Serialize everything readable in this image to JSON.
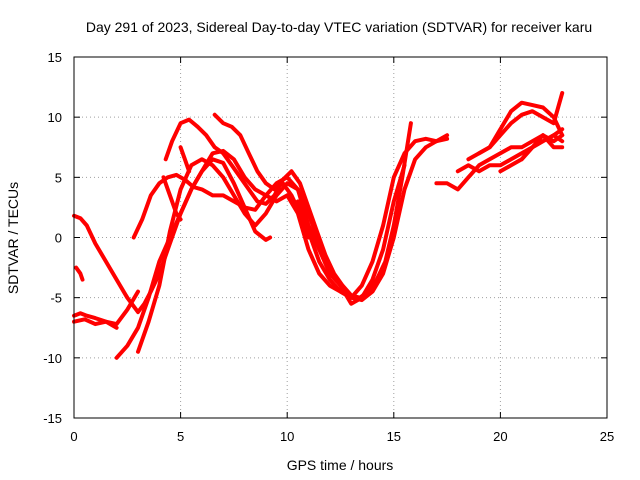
{
  "chart_data": {
    "type": "line",
    "title": "Day 291 of 2023, Sidereal Day-to-day VTEC variation (SDTVAR) for receiver karu",
    "xlabel": "GPS time / hours",
    "ylabel": "SDTVAR / TECUs",
    "xlim": [
      0,
      25
    ],
    "ylim": [
      -15,
      15
    ],
    "xticks": [
      0,
      5,
      10,
      15,
      20,
      25
    ],
    "yticks": [
      -15,
      -10,
      -5,
      0,
      5,
      10,
      15
    ],
    "grid": true,
    "color": "#ff0000",
    "marker": "plus",
    "series": [
      {
        "name": "s1",
        "x": [
          0.0,
          0.3,
          0.6,
          1.0,
          1.5,
          2.0,
          2.5,
          3.0,
          3.3,
          3.6,
          4.0,
          4.5,
          5.0,
          5.5,
          6.0,
          6.5,
          7.0,
          7.5,
          8.0,
          8.5,
          9.0,
          9.2
        ],
        "y": [
          1.8,
          1.6,
          1.0,
          -0.5,
          -2.0,
          -3.5,
          -5.0,
          -6.2,
          -5.5,
          -4.5,
          -3.0,
          -0.5,
          2.0,
          4.0,
          5.5,
          6.5,
          6.2,
          4.5,
          2.5,
          0.5,
          -0.2,
          0.0
        ]
      },
      {
        "name": "s2",
        "x": [
          0.0,
          0.3,
          0.6,
          1.0,
          1.5,
          2.0,
          2.5,
          3.0
        ],
        "y": [
          -6.5,
          -6.3,
          -6.5,
          -6.7,
          -7.0,
          -7.2,
          -6.0,
          -4.5
        ]
      },
      {
        "name": "s3",
        "x": [
          0.0,
          0.5,
          1.0,
          1.5,
          2.0
        ],
        "y": [
          -7.0,
          -6.8,
          -7.2,
          -7.0,
          -7.5
        ]
      },
      {
        "name": "s4",
        "x": [
          0.1,
          0.3,
          0.4
        ],
        "y": [
          -2.5,
          -3.0,
          -3.5
        ]
      },
      {
        "name": "s5",
        "x": [
          2.0,
          2.5,
          3.0,
          3.5,
          4.0,
          4.5,
          5.0,
          5.5,
          6.0,
          6.5,
          7.0,
          7.5,
          8.0,
          8.5,
          9.0,
          9.5,
          10.0,
          10.5,
          11.0,
          11.5,
          12.0,
          12.5,
          13.0
        ],
        "y": [
          -10.0,
          -9.0,
          -7.5,
          -5.0,
          -2.0,
          0.0,
          2.0,
          4.0,
          5.5,
          7.0,
          7.2,
          6.5,
          5.0,
          4.0,
          3.5,
          3.0,
          3.5,
          2.0,
          -1.0,
          -3.0,
          -4.0,
          -4.5,
          -5.0
        ]
      },
      {
        "name": "s6",
        "x": [
          2.8,
          3.2,
          3.6,
          4.0,
          4.4,
          4.8,
          5.2,
          5.6,
          6.0,
          6.5,
          7.0,
          7.5,
          8.0,
          8.5,
          9.0,
          9.5,
          10.0,
          10.5,
          11.0,
          11.5,
          12.0,
          12.5,
          13.0,
          13.5,
          14.0,
          14.5,
          15.0,
          15.5,
          16.0,
          16.5,
          17.0,
          17.5
        ],
        "y": [
          0.0,
          1.5,
          3.5,
          4.5,
          5.0,
          5.2,
          4.8,
          4.2,
          4.0,
          3.5,
          3.5,
          3.0,
          2.5,
          2.3,
          3.5,
          4.5,
          5.0,
          4.0,
          1.0,
          -1.0,
          -3.0,
          -4.0,
          -5.0,
          -5.2,
          -4.5,
          -3.0,
          0.0,
          4.0,
          6.5,
          7.5,
          8.0,
          8.2
        ]
      },
      {
        "name": "s7",
        "x": [
          3.0,
          3.5,
          4.0,
          4.5,
          5.0,
          5.5,
          6.0,
          6.5,
          7.0,
          7.5,
          8.0,
          8.5,
          9.0,
          9.5,
          10.0,
          10.5,
          11.0,
          11.5,
          12.0,
          12.5,
          13.0,
          13.5,
          14.0,
          14.5,
          15.0,
          15.5
        ],
        "y": [
          -9.5,
          -7.0,
          -4.0,
          0.5,
          4.0,
          6.0,
          6.5,
          6.0,
          5.0,
          3.5,
          2.0,
          1.0,
          2.0,
          3.5,
          4.5,
          4.0,
          2.0,
          -0.5,
          -2.5,
          -4.0,
          -5.5,
          -5.0,
          -3.5,
          -1.0,
          3.0,
          6.0
        ]
      },
      {
        "name": "s8",
        "x": [
          4.2,
          4.4,
          4.6,
          4.8,
          5.0
        ],
        "y": [
          5.0,
          4.0,
          3.0,
          2.0,
          1.5
        ]
      },
      {
        "name": "s9",
        "x": [
          5.0,
          5.2,
          5.4
        ],
        "y": [
          7.5,
          6.5,
          5.5
        ]
      },
      {
        "name": "s10",
        "x": [
          4.3,
          4.6,
          5.0,
          5.4,
          5.8,
          6.2,
          6.6,
          7.0,
          7.4,
          7.8,
          8.2,
          8.6,
          9.0,
          9.4,
          9.8,
          10.2,
          10.6,
          11.0,
          11.4,
          11.8,
          12.2,
          12.6,
          13.0,
          13.4,
          13.8,
          14.2,
          14.6,
          15.0,
          15.4,
          15.8
        ],
        "y": [
          6.5,
          8.0,
          9.5,
          9.8,
          9.2,
          8.5,
          7.5,
          7.0,
          6.0,
          5.0,
          4.0,
          3.0,
          2.8,
          3.5,
          4.8,
          5.5,
          4.5,
          2.5,
          0.5,
          -1.5,
          -3.0,
          -4.0,
          -4.8,
          -5.0,
          -4.5,
          -3.5,
          -2.0,
          1.0,
          5.0,
          9.5
        ]
      },
      {
        "name": "s11",
        "x": [
          6.6,
          7.0,
          7.4,
          7.8,
          8.2,
          8.6,
          9.0,
          9.4,
          9.8,
          10.2,
          10.6,
          11.0
        ],
        "y": [
          10.2,
          9.5,
          9.2,
          8.5,
          7.0,
          5.5,
          4.5,
          4.0,
          4.5,
          3.5,
          2.0,
          0.0
        ]
      },
      {
        "name": "s12",
        "x": [
          10.5,
          11.0,
          11.5,
          12.0,
          12.5,
          13.0,
          13.5,
          14.0,
          14.5,
          15.0,
          15.5,
          16.0,
          16.5,
          17.0,
          17.5
        ],
        "y": [
          3.0,
          0.5,
          -2.0,
          -3.5,
          -4.5,
          -5.0,
          -4.0,
          -2.0,
          1.0,
          5.0,
          7.0,
          8.0,
          8.2,
          8.0,
          8.5
        ]
      },
      {
        "name": "s13",
        "x": [
          17.0,
          17.5,
          18.0,
          18.5,
          19.0,
          19.5,
          20.0,
          20.5,
          21.0,
          21.5,
          22.0,
          22.5,
          22.9
        ],
        "y": [
          4.5,
          4.5,
          4.0,
          5.0,
          6.0,
          6.5,
          7.0,
          7.5,
          7.5,
          8.0,
          8.5,
          7.5,
          7.5
        ]
      },
      {
        "name": "s14",
        "x": [
          18.0,
          18.5,
          19.0,
          19.5,
          20.0,
          20.5,
          21.0,
          21.5,
          22.0,
          22.5,
          22.9
        ],
        "y": [
          5.5,
          6.0,
          5.5,
          6.0,
          6.0,
          6.5,
          7.0,
          7.5,
          8.0,
          8.5,
          9.0
        ]
      },
      {
        "name": "s15",
        "x": [
          18.5,
          19.0,
          19.5,
          20.0,
          20.5,
          21.0,
          21.5,
          22.0,
          22.5,
          22.9
        ],
        "y": [
          6.5,
          7.0,
          7.5,
          8.5,
          9.5,
          10.2,
          10.5,
          10.0,
          9.5,
          12.0
        ]
      },
      {
        "name": "s16",
        "x": [
          19.0,
          19.5,
          20.0,
          20.5,
          21.0,
          21.5,
          22.0,
          22.5,
          22.9
        ],
        "y": [
          7.0,
          7.5,
          9.0,
          10.5,
          11.2,
          11.0,
          10.8,
          10.0,
          8.5
        ]
      },
      {
        "name": "s17",
        "x": [
          20.0,
          20.5,
          21.0,
          21.5,
          22.0,
          22.5,
          22.9
        ],
        "y": [
          5.5,
          6.0,
          6.5,
          7.5,
          8.5,
          8.0,
          8.5
        ]
      },
      {
        "name": "s18",
        "x": [
          21.0,
          21.5,
          22.0,
          22.5,
          22.9
        ],
        "y": [
          6.5,
          7.5,
          8.0,
          8.5,
          8.0
        ]
      }
    ]
  }
}
